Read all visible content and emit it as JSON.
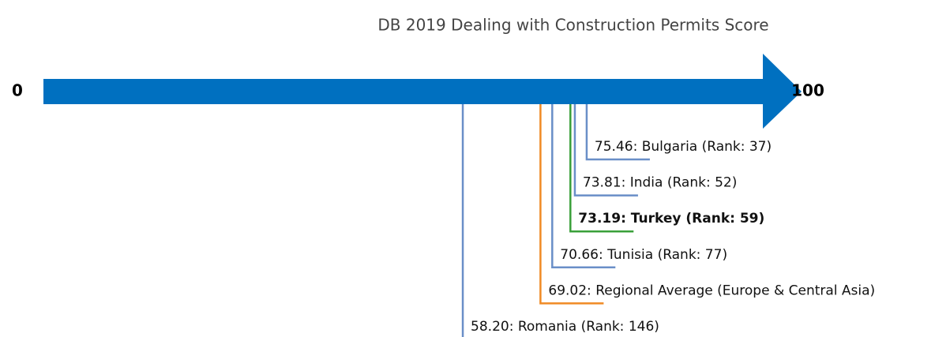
{
  "chart_data": {
    "type": "numberline",
    "title": "DB 2019 Dealing with Construction Permits Score",
    "xlim": [
      0,
      100
    ],
    "xticks": [
      0,
      100
    ],
    "arrow_color": "#0070c0",
    "values": [
      75.46,
      73.81,
      73.19,
      70.66,
      69.02,
      58.2
    ],
    "value_labels": [
      "75.46: Bulgaria (Rank: 37)",
      "73.81: India (Rank: 52)",
      "73.19: Turkey (Rank: 59)",
      "70.66: Tunisia (Rank: 77)",
      "69.02: Regional Average (Europe & Central Asia)",
      "58.20: Romania (Rank: 146)"
    ],
    "colors": [
      "#6a8fc8",
      "#6a8fc8",
      "#3aa03a",
      "#6a8fc8",
      "#f08a24",
      "#6a8fc8"
    ],
    "bold": [
      false,
      false,
      true,
      false,
      false,
      false
    ]
  }
}
